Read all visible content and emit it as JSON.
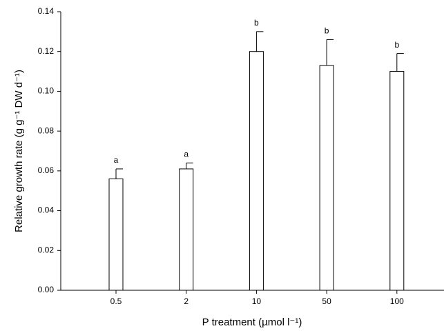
{
  "chart_data": {
    "type": "bar",
    "y_label": "Relative growth rate (g g⁻¹ DW d⁻¹)",
    "x_label": "P treatment (µmol l⁻¹)",
    "categories": [
      "0.5",
      "2",
      "10",
      "50",
      "100"
    ],
    "values": [
      0.056,
      0.061,
      0.12,
      0.113,
      0.11
    ],
    "errors": [
      0.005,
      0.003,
      0.01,
      0.013,
      0.009
    ],
    "annotations": [
      "a",
      "a",
      "b",
      "b",
      "b"
    ],
    "color": "#ffffff",
    "ylim": [
      0,
      0.14
    ],
    "yticks": [
      {
        "value": 0,
        "label": "0.00"
      },
      {
        "value": 0.02,
        "label": "0.02"
      },
      {
        "value": 0.04,
        "label": "0.04"
      },
      {
        "value": 0.06,
        "label": "0.06"
      },
      {
        "value": 0.08,
        "label": "0.08"
      },
      {
        "value": 0.1,
        "label": "0.10"
      },
      {
        "value": 0.12,
        "label": "0.12"
      },
      {
        "value": 0.14,
        "label": "0.14"
      }
    ]
  }
}
